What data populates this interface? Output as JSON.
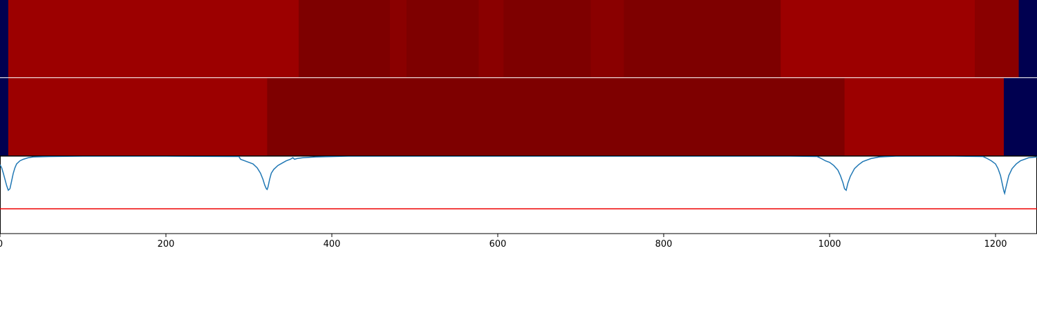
{
  "colors": {
    "background_segment": "#000050",
    "level_bright": "#9c0000",
    "level_mid": "#8a0000",
    "level_dark": "#7e0000",
    "curve": "#1f77b4",
    "threshold": "#ee0000",
    "separator": "#ffffff",
    "frame": "#000000"
  },
  "chart_data": [
    {
      "type": "heatmap",
      "title": "",
      "xlim": [
        0,
        1250
      ],
      "segments": [
        {
          "start": 0,
          "end": 10,
          "level": "background_segment"
        },
        {
          "start": 10,
          "end": 360,
          "level": "level_bright"
        },
        {
          "start": 360,
          "end": 470,
          "level": "level_dark"
        },
        {
          "start": 470,
          "end": 490,
          "level": "level_mid"
        },
        {
          "start": 490,
          "end": 577,
          "level": "level_dark"
        },
        {
          "start": 577,
          "end": 607,
          "level": "level_mid"
        },
        {
          "start": 607,
          "end": 712,
          "level": "level_dark"
        },
        {
          "start": 712,
          "end": 752,
          "level": "level_mid"
        },
        {
          "start": 752,
          "end": 941,
          "level": "level_dark"
        },
        {
          "start": 941,
          "end": 1175,
          "level": "level_bright"
        },
        {
          "start": 1175,
          "end": 1228,
          "level": "level_mid"
        },
        {
          "start": 1228,
          "end": 1250,
          "level": "background_segment"
        }
      ]
    },
    {
      "type": "heatmap",
      "title": "",
      "xlim": [
        0,
        1250
      ],
      "segments": [
        {
          "start": 0,
          "end": 10,
          "level": "background_segment"
        },
        {
          "start": 10,
          "end": 322,
          "level": "level_bright"
        },
        {
          "start": 322,
          "end": 1018,
          "level": "level_dark"
        },
        {
          "start": 1018,
          "end": 1210,
          "level": "level_bright"
        },
        {
          "start": 1210,
          "end": 1250,
          "level": "background_segment"
        }
      ]
    },
    {
      "type": "line",
      "title": "",
      "xlabel": "",
      "ylabel": "",
      "xlim": [
        0,
        1250
      ],
      "ylim": [
        -1.0,
        0.0
      ],
      "grid": false,
      "xticks": [
        0,
        200,
        400,
        600,
        800,
        1000,
        1200
      ],
      "xtick_labels": [
        "0",
        "200",
        "400",
        "600",
        "800",
        "1000",
        "1200"
      ],
      "threshold": -0.68,
      "series": [
        {
          "x": [
            0,
            2,
            4,
            6,
            8,
            10,
            12,
            14,
            16,
            18,
            20,
            24,
            28,
            34,
            40,
            60,
            100,
            200,
            288,
            290,
            295,
            300,
            305,
            310,
            314,
            317,
            319,
            321,
            322,
            323,
            325,
            327,
            330,
            335,
            340,
            345,
            350,
            353,
            355,
            358,
            365,
            380,
            420,
            500,
            600,
            800,
            950,
            985,
            990,
            995,
            1000,
            1005,
            1010,
            1013,
            1016,
            1018,
            1020,
            1022,
            1025,
            1030,
            1035,
            1040,
            1050,
            1060,
            1080,
            1100,
            1150,
            1185,
            1190,
            1195,
            1200,
            1203,
            1206,
            1208,
            1210,
            1211,
            1212,
            1214,
            1216,
            1220,
            1225,
            1230,
            1240,
            1250
          ],
          "y": [
            -0.11,
            -0.15,
            -0.22,
            -0.3,
            -0.38,
            -0.44,
            -0.42,
            -0.32,
            -0.22,
            -0.15,
            -0.1,
            -0.06,
            -0.04,
            -0.02,
            -0.01,
            -0.005,
            0,
            0,
            -0.005,
            -0.04,
            -0.06,
            -0.08,
            -0.1,
            -0.15,
            -0.22,
            -0.3,
            -0.37,
            -0.42,
            -0.43,
            -0.4,
            -0.3,
            -0.22,
            -0.17,
            -0.12,
            -0.09,
            -0.06,
            -0.04,
            -0.02,
            -0.04,
            -0.03,
            -0.02,
            -0.01,
            0,
            0,
            0,
            0,
            0,
            -0.005,
            -0.03,
            -0.06,
            -0.08,
            -0.12,
            -0.18,
            -0.25,
            -0.34,
            -0.42,
            -0.44,
            -0.35,
            -0.26,
            -0.16,
            -0.11,
            -0.07,
            -0.03,
            -0.01,
            0,
            0,
            0,
            -0.005,
            -0.03,
            -0.06,
            -0.1,
            -0.16,
            -0.25,
            -0.35,
            -0.45,
            -0.48,
            -0.43,
            -0.34,
            -0.25,
            -0.16,
            -0.1,
            -0.06,
            -0.02,
            -0.01
          ]
        }
      ]
    }
  ]
}
